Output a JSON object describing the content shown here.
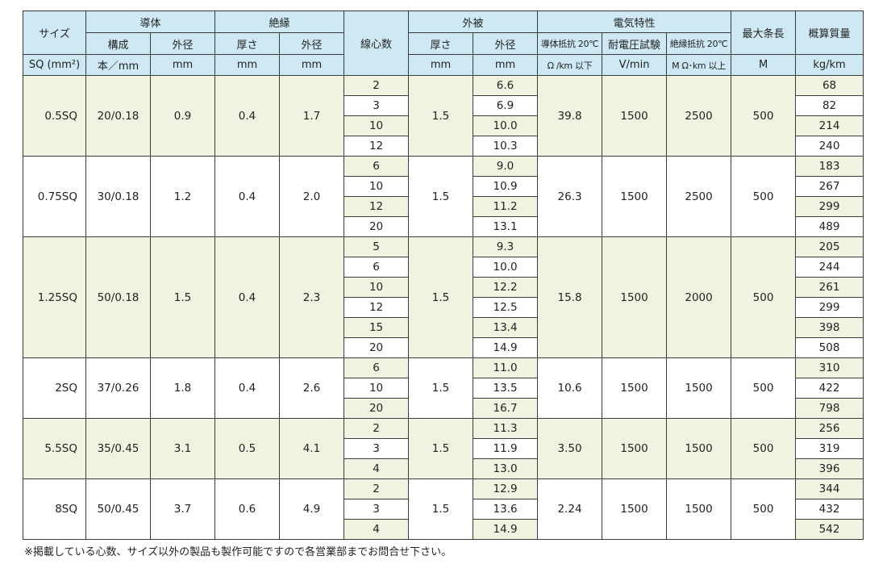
{
  "header": {
    "size": "サイズ",
    "conductor": "導体",
    "conductor_structure": "構成",
    "conductor_od": "外径",
    "insulation": "絶縁",
    "insulation_thickness": "厚さ",
    "insulation_od": "外径",
    "cores": "線心数",
    "sheath": "外被",
    "sheath_thickness": "厚さ",
    "sheath_od": "外径",
    "electrical": "電気特性",
    "resistance": "導体抵抗 20℃",
    "withstand": "耐電圧試験",
    "ins_resistance": "絶縁抵抗 20℃",
    "max_length": "最大条長",
    "weight": "概算質量",
    "units": {
      "size": "SQ (mm²)",
      "structure": "本／mm",
      "conductor_od": "mm",
      "ins_thickness": "mm",
      "ins_od": "mm",
      "sheath_thickness": "mm",
      "sheath_od": "mm",
      "resistance": "Ω /km 以下",
      "withstand": "V/min",
      "ins_resistance": "M Ω･km 以上",
      "max_length": "M",
      "weight": "kg/km"
    }
  },
  "groups": [
    {
      "size": "0.5SQ",
      "structure": "20/0.18",
      "conductor_od": "0.9",
      "ins_thickness": "0.4",
      "ins_od": "1.7",
      "sheath_thickness": "1.5",
      "resistance": "39.8",
      "withstand": "1500",
      "ins_resistance": "2500",
      "max_length": "500",
      "rows": [
        {
          "cores": "2",
          "od": "6.6",
          "weight": "68"
        },
        {
          "cores": "3",
          "od": "6.9",
          "weight": "82"
        },
        {
          "cores": "10",
          "od": "10.0",
          "weight": "214"
        },
        {
          "cores": "12",
          "od": "10.3",
          "weight": "240"
        }
      ]
    },
    {
      "size": "0.75SQ",
      "structure": "30/0.18",
      "conductor_od": "1.2",
      "ins_thickness": "0.4",
      "ins_od": "2.0",
      "sheath_thickness": "1.5",
      "resistance": "26.3",
      "withstand": "1500",
      "ins_resistance": "2500",
      "max_length": "500",
      "rows": [
        {
          "cores": "6",
          "od": "9.0",
          "weight": "183"
        },
        {
          "cores": "10",
          "od": "10.9",
          "weight": "267"
        },
        {
          "cores": "12",
          "od": "11.2",
          "weight": "299"
        },
        {
          "cores": "20",
          "od": "13.1",
          "weight": "489"
        }
      ]
    },
    {
      "size": "1.25SQ",
      "structure": "50/0.18",
      "conductor_od": "1.5",
      "ins_thickness": "0.4",
      "ins_od": "2.3",
      "sheath_thickness": "1.5",
      "resistance": "15.8",
      "withstand": "1500",
      "ins_resistance": "2000",
      "max_length": "500",
      "rows": [
        {
          "cores": "5",
          "od": "9.3",
          "weight": "205"
        },
        {
          "cores": "6",
          "od": "10.0",
          "weight": "244"
        },
        {
          "cores": "10",
          "od": "12.2",
          "weight": "261"
        },
        {
          "cores": "12",
          "od": "12.5",
          "weight": "299"
        },
        {
          "cores": "15",
          "od": "13.4",
          "weight": "398"
        },
        {
          "cores": "20",
          "od": "14.9",
          "weight": "508"
        }
      ]
    },
    {
      "size": "2SQ",
      "structure": "37/0.26",
      "conductor_od": "1.8",
      "ins_thickness": "0.4",
      "ins_od": "2.6",
      "sheath_thickness": "1.5",
      "resistance": "10.6",
      "withstand": "1500",
      "ins_resistance": "1500",
      "max_length": "500",
      "rows": [
        {
          "cores": "6",
          "od": "11.0",
          "weight": "310"
        },
        {
          "cores": "10",
          "od": "13.5",
          "weight": "422"
        },
        {
          "cores": "20",
          "od": "16.7",
          "weight": "798"
        }
      ]
    },
    {
      "size": "5.5SQ",
      "structure": "35/0.45",
      "conductor_od": "3.1",
      "ins_thickness": "0.5",
      "ins_od": "4.1",
      "sheath_thickness": "1.5",
      "resistance": "3.50",
      "withstand": "1500",
      "ins_resistance": "1500",
      "max_length": "500",
      "rows": [
        {
          "cores": "2",
          "od": "11.3",
          "weight": "256"
        },
        {
          "cores": "3",
          "od": "11.9",
          "weight": "319"
        },
        {
          "cores": "4",
          "od": "13.0",
          "weight": "396"
        }
      ]
    },
    {
      "size": "8SQ",
      "structure": "50/0.45",
      "conductor_od": "3.7",
      "ins_thickness": "0.6",
      "ins_od": "4.9",
      "sheath_thickness": "1.5",
      "resistance": "2.24",
      "withstand": "1500",
      "ins_resistance": "1500",
      "max_length": "500",
      "rows": [
        {
          "cores": "2",
          "od": "12.9",
          "weight": "344"
        },
        {
          "cores": "3",
          "od": "13.6",
          "weight": "432"
        },
        {
          "cores": "4",
          "od": "14.9",
          "weight": "542"
        }
      ]
    }
  ],
  "footnote": "※掲載している心数、サイズ以外の製品も製作可能ですので各営業部までお問合せ下さい。"
}
